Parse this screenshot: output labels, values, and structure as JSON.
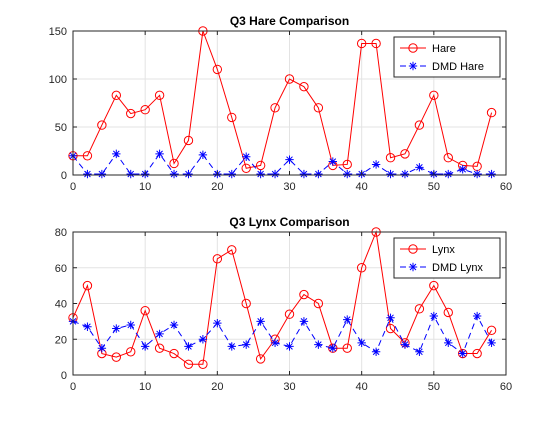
{
  "chart_data": [
    {
      "type": "line",
      "title": "Q3 Hare Comparison",
      "xlabel": "",
      "ylabel": "",
      "xlim": [
        0,
        60
      ],
      "ylim": [
        0,
        150
      ],
      "xticks": [
        0,
        10,
        20,
        30,
        40,
        50,
        60
      ],
      "yticks": [
        0,
        50,
        100,
        150
      ],
      "grid": true,
      "legend_position": "top-right",
      "x": [
        0,
        2,
        4,
        6,
        8,
        10,
        12,
        14,
        16,
        18,
        20,
        22,
        24,
        26,
        28,
        30,
        32,
        34,
        36,
        38,
        40,
        42,
        44,
        46,
        48,
        50,
        52,
        54,
        56,
        58
      ],
      "series": [
        {
          "name": "Hare",
          "color": "#ff0000",
          "line": "solid",
          "marker": "circle",
          "values": [
            20,
            20,
            52,
            83,
            64,
            68,
            83,
            12,
            36,
            150,
            110,
            60,
            7,
            10,
            70,
            100,
            92,
            70,
            10,
            11,
            137,
            137,
            18,
            22,
            52,
            83,
            18,
            10,
            9,
            65
          ]
        },
        {
          "name": "DMD Hare",
          "color": "#0000ff",
          "line": "dashed",
          "marker": "asterisk",
          "values": [
            20,
            1,
            1,
            22,
            1,
            1,
            22,
            1,
            1,
            21,
            1,
            1,
            19,
            1,
            1,
            16,
            1,
            1,
            14,
            1,
            1,
            11,
            1,
            1,
            8,
            1,
            1,
            6,
            1,
            1
          ]
        }
      ]
    },
    {
      "type": "line",
      "title": "Q3 Lynx Comparison",
      "xlabel": "",
      "ylabel": "",
      "xlim": [
        0,
        60
      ],
      "ylim": [
        0,
        80
      ],
      "xticks": [
        0,
        10,
        20,
        30,
        40,
        50,
        60
      ],
      "yticks": [
        0,
        20,
        40,
        60,
        80
      ],
      "grid": true,
      "legend_position": "top-right",
      "x": [
        0,
        2,
        4,
        6,
        8,
        10,
        12,
        14,
        16,
        18,
        20,
        22,
        24,
        26,
        28,
        30,
        32,
        34,
        36,
        38,
        40,
        42,
        44,
        46,
        48,
        50,
        52,
        54,
        56,
        58
      ],
      "series": [
        {
          "name": "Lynx",
          "color": "#ff0000",
          "line": "solid",
          "marker": "circle",
          "values": [
            32,
            50,
            12,
            10,
            13,
            36,
            15,
            12,
            6,
            6,
            65,
            70,
            40,
            9,
            20,
            34,
            45,
            40,
            15,
            15,
            60,
            80,
            26,
            18,
            37,
            50,
            35,
            12,
            12,
            25
          ]
        },
        {
          "name": "DMD Lynx",
          "color": "#0000ff",
          "line": "dashed",
          "marker": "asterisk",
          "values": [
            30,
            27,
            15,
            26,
            28,
            16,
            23,
            28,
            16,
            20,
            29,
            16,
            17,
            30,
            18,
            16,
            30,
            17,
            15,
            31,
            18,
            13,
            32,
            17,
            13,
            33,
            18,
            12,
            33,
            18
          ]
        }
      ]
    }
  ]
}
